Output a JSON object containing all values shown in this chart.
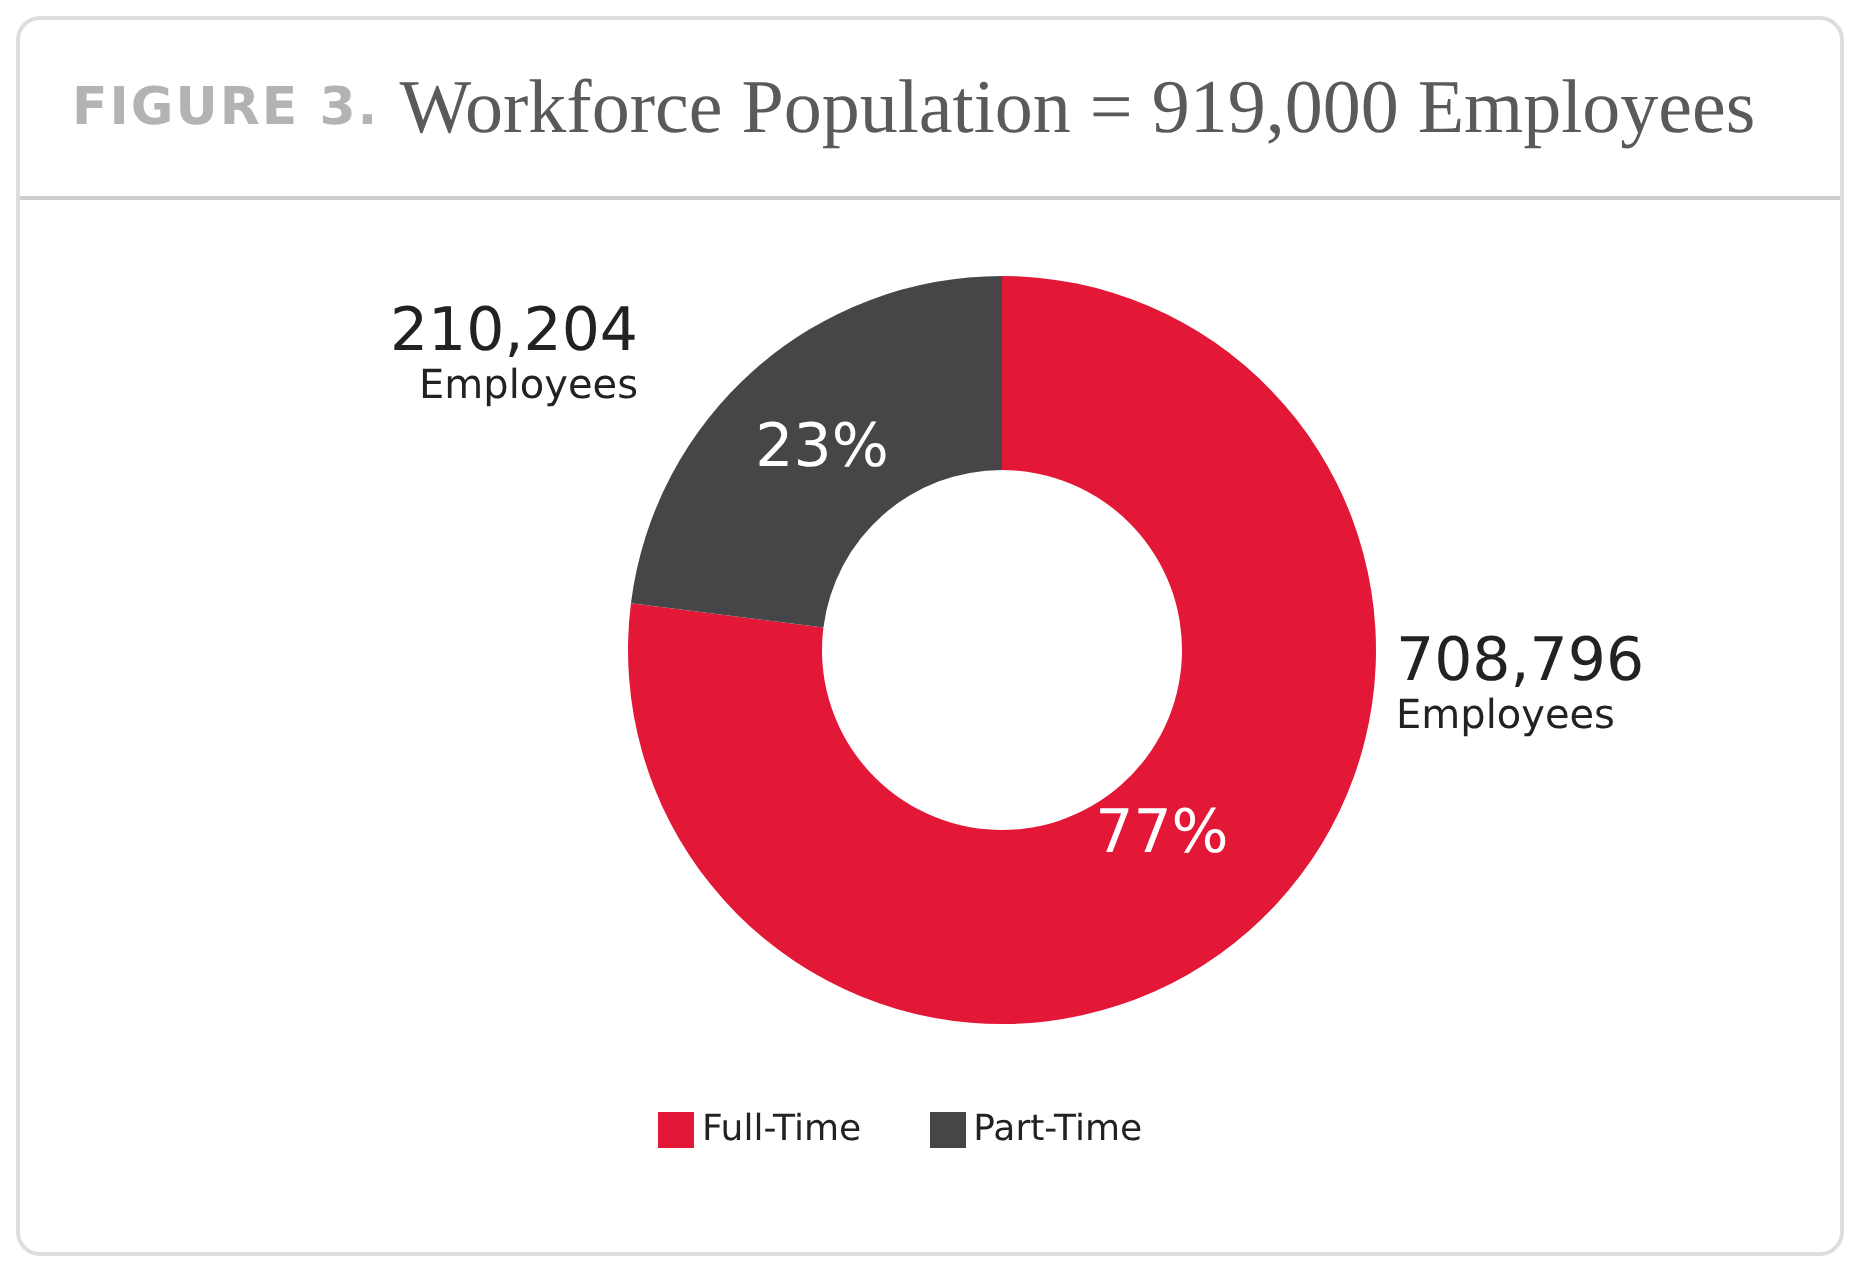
{
  "chart_data": {
    "type": "donut",
    "title": "FIGURE 3. Workforce Population = 919,000 Employees",
    "categories": [
      "Full-Time",
      "Part-Time"
    ],
    "values": [
      77,
      23
    ],
    "colors": [
      "#e31837",
      "#464648"
    ],
    "value_labels": [
      "77%",
      "23%"
    ],
    "annotations": [
      {
        "text": "708,796\nEmployees",
        "x": "Full-Time"
      },
      {
        "text": "210,204\nEmployees",
        "x": "Part-Time"
      }
    ],
    "legend": "bottom"
  }
}
